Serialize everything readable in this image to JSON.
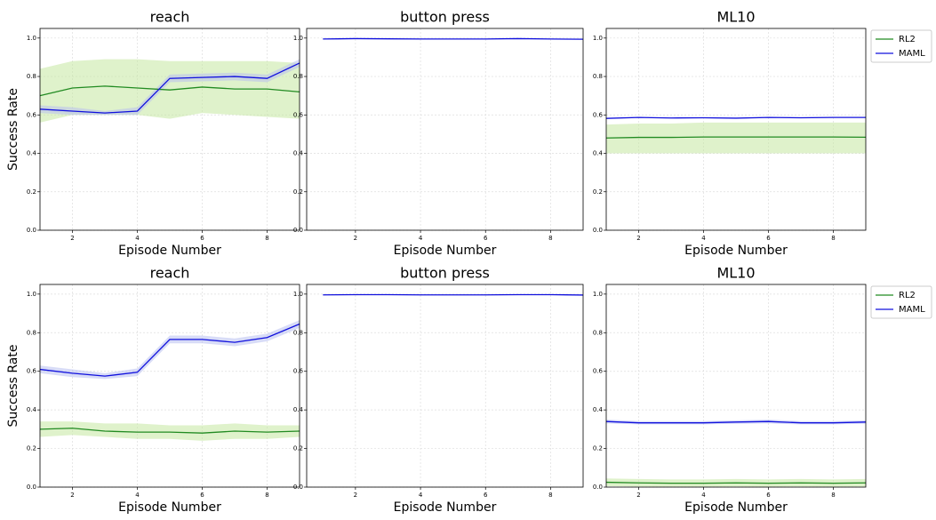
{
  "chart_data": [
    {
      "type": "line",
      "title": "reach",
      "xlabel": "Episode Number",
      "ylabel": "Success Rate",
      "x": [
        1,
        2,
        3,
        4,
        5,
        6,
        7,
        8,
        9
      ],
      "xlim": [
        1,
        9
      ],
      "xticks": [
        2,
        4,
        6,
        8
      ],
      "ylim": [
        0,
        1.05
      ],
      "yticks": [
        {
          "value": 0,
          "label": "0.0"
        },
        0.2,
        0.4,
        0.6,
        0.8,
        {
          "value": 1,
          "label": "1.0"
        }
      ],
      "grid": true,
      "series": [
        {
          "name": "RL2",
          "color": "#228b22",
          "values": [
            0.7,
            0.74,
            0.75,
            0.74,
            0.73,
            0.745,
            0.735,
            0.735,
            0.72
          ],
          "band": {
            "color": "#c5e8a0",
            "low": [
              0.56,
              0.6,
              0.6,
              0.6,
              0.58,
              0.61,
              0.6,
              0.59,
              0.58
            ],
            "high": [
              0.84,
              0.88,
              0.89,
              0.89,
              0.88,
              0.88,
              0.88,
              0.88,
              0.87
            ]
          }
        },
        {
          "name": "MAML",
          "color": "#1010dd",
          "values": [
            0.63,
            0.62,
            0.61,
            0.62,
            0.79,
            0.795,
            0.8,
            0.79,
            0.87
          ],
          "band": {
            "color": "#b8c0f0",
            "low": [
              0.61,
              0.6,
              0.6,
              0.6,
              0.77,
              0.775,
              0.78,
              0.77,
              0.85
            ],
            "high": [
              0.65,
              0.64,
              0.62,
              0.64,
              0.81,
              0.815,
              0.82,
              0.81,
              0.89
            ]
          }
        }
      ]
    },
    {
      "type": "line",
      "title": "button press",
      "xlabel": "Episode Number",
      "x": [
        1,
        2,
        3,
        4,
        5,
        6,
        7,
        8,
        9
      ],
      "xlim": [
        0.5,
        9
      ],
      "xticks": [
        2,
        4,
        6,
        8
      ],
      "ylim": [
        0,
        1.05
      ],
      "yticks": [
        {
          "value": 0,
          "label": "0.0"
        },
        0.2,
        0.4,
        0.6,
        0.8,
        {
          "value": 1,
          "label": "1.0"
        }
      ],
      "grid": true,
      "series": [
        {
          "name": "MAML",
          "color": "#1010dd",
          "values": [
            0.995,
            0.997,
            0.996,
            0.995,
            0.995,
            0.995,
            0.997,
            0.995,
            0.994
          ]
        }
      ]
    },
    {
      "type": "line",
      "title": "ML10",
      "xlabel": "Episode Number",
      "x": [
        1,
        2,
        3,
        4,
        5,
        6,
        7,
        8,
        9
      ],
      "xlim": [
        1,
        9
      ],
      "xticks": [
        2,
        4,
        6,
        8
      ],
      "ylim": [
        0,
        1.05
      ],
      "yticks": [
        {
          "value": 0,
          "label": "0.0"
        },
        0.2,
        0.4,
        0.6,
        0.8,
        {
          "value": 1,
          "label": "1.0"
        }
      ],
      "grid": true,
      "legend": "upper right outside",
      "series": [
        {
          "name": "RL2",
          "color": "#228b22",
          "values": [
            0.48,
            0.483,
            0.483,
            0.485,
            0.485,
            0.485,
            0.485,
            0.485,
            0.484
          ],
          "band": {
            "color": "#c5e8a0",
            "low": [
              0.4,
              0.4,
              0.4,
              0.4,
              0.4,
              0.4,
              0.4,
              0.4,
              0.4
            ],
            "high": [
              0.55,
              0.555,
              0.555,
              0.56,
              0.56,
              0.56,
              0.56,
              0.56,
              0.56
            ]
          }
        },
        {
          "name": "MAML",
          "color": "#1010dd",
          "values": [
            0.582,
            0.587,
            0.584,
            0.585,
            0.583,
            0.587,
            0.585,
            0.587,
            0.587
          ]
        }
      ]
    },
    {
      "type": "line",
      "title": "reach",
      "xlabel": "Episode Number",
      "ylabel": "Success Rate",
      "x": [
        1,
        2,
        3,
        4,
        5,
        6,
        7,
        8,
        9
      ],
      "xlim": [
        1,
        9
      ],
      "xticks": [
        2,
        4,
        6,
        8
      ],
      "ylim": [
        0,
        1.05
      ],
      "yticks": [
        {
          "value": 0,
          "label": "0.0"
        },
        0.2,
        0.4,
        0.6,
        0.8,
        {
          "value": 1,
          "label": "1.0"
        }
      ],
      "grid": true,
      "series": [
        {
          "name": "RL2",
          "color": "#228b22",
          "values": [
            0.3,
            0.305,
            0.29,
            0.285,
            0.285,
            0.28,
            0.29,
            0.285,
            0.29
          ],
          "band": {
            "color": "#c5e8a0",
            "low": [
              0.26,
              0.27,
              0.26,
              0.25,
              0.25,
              0.24,
              0.25,
              0.25,
              0.26
            ],
            "high": [
              0.34,
              0.34,
              0.33,
              0.33,
              0.32,
              0.32,
              0.33,
              0.32,
              0.32
            ]
          }
        },
        {
          "name": "MAML",
          "color": "#1010dd",
          "values": [
            0.61,
            0.59,
            0.575,
            0.595,
            0.765,
            0.765,
            0.75,
            0.775,
            0.845
          ],
          "band": {
            "color": "#b8c0f0",
            "low": [
              0.59,
              0.57,
              0.56,
              0.575,
              0.745,
              0.745,
              0.73,
              0.755,
              0.825
            ],
            "high": [
              0.63,
              0.61,
              0.59,
              0.615,
              0.785,
              0.785,
              0.77,
              0.795,
              0.865
            ]
          }
        }
      ]
    },
    {
      "type": "line",
      "title": "button press",
      "xlabel": "Episode Number",
      "x": [
        1,
        2,
        3,
        4,
        5,
        6,
        7,
        8,
        9
      ],
      "xlim": [
        0.5,
        9
      ],
      "xticks": [
        2,
        4,
        6,
        8
      ],
      "ylim": [
        0,
        1.05
      ],
      "yticks": [
        {
          "value": 0,
          "label": "0.0"
        },
        0.2,
        0.4,
        0.6,
        0.8,
        {
          "value": 1,
          "label": "1.0"
        }
      ],
      "grid": true,
      "series": [
        {
          "name": "MAML",
          "color": "#1010dd",
          "values": [
            0.996,
            0.997,
            0.997,
            0.996,
            0.996,
            0.996,
            0.997,
            0.997,
            0.995
          ]
        }
      ]
    },
    {
      "type": "line",
      "title": "ML10",
      "xlabel": "Episode Number",
      "x": [
        1,
        2,
        3,
        4,
        5,
        6,
        7,
        8,
        9
      ],
      "xlim": [
        1,
        9
      ],
      "xticks": [
        2,
        4,
        6,
        8
      ],
      "ylim": [
        0,
        1.05
      ],
      "yticks": [
        {
          "value": 0,
          "label": "0.0"
        },
        0.2,
        0.4,
        0.6,
        0.8,
        {
          "value": 1,
          "label": "1.0"
        }
      ],
      "grid": true,
      "legend": "upper right outside",
      "series": [
        {
          "name": "RL2",
          "color": "#228b22",
          "values": [
            0.025,
            0.022,
            0.02,
            0.02,
            0.022,
            0.02,
            0.022,
            0.02,
            0.022
          ],
          "band": {
            "color": "#c5e8a0",
            "low": [
              0.005,
              0.003,
              0.002,
              0.002,
              0.003,
              0.002,
              0.003,
              0.002,
              0.003
            ],
            "high": [
              0.045,
              0.042,
              0.04,
              0.04,
              0.042,
              0.04,
              0.042,
              0.04,
              0.042
            ]
          }
        },
        {
          "name": "MAML",
          "color": "#1010dd",
          "values": [
            0.34,
            0.333,
            0.333,
            0.333,
            0.337,
            0.34,
            0.333,
            0.333,
            0.337
          ],
          "band": {
            "color": "#b8c0f0",
            "low": [
              0.33,
              0.325,
              0.325,
              0.325,
              0.328,
              0.33,
              0.325,
              0.325,
              0.328
            ],
            "high": [
              0.35,
              0.342,
              0.342,
              0.342,
              0.346,
              0.35,
              0.342,
              0.342,
              0.346
            ]
          }
        }
      ]
    }
  ]
}
